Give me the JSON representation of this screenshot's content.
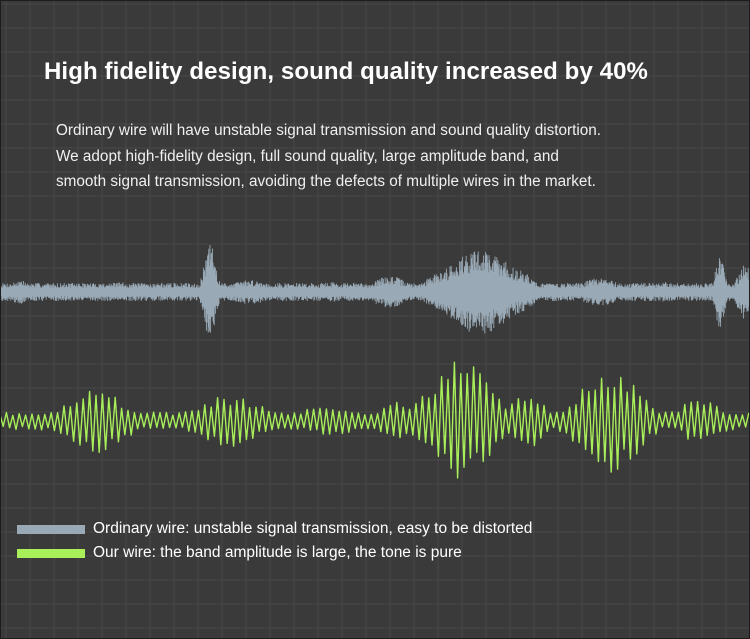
{
  "title": "High fidelity design, sound quality increased by 40%",
  "description": {
    "line1": "Ordinary wire will have unstable signal transmission and sound quality distortion.",
    "line2": "We adopt high-fidelity design, full sound quality, large amplitude band, and",
    "line3": "smooth signal transmission, avoiding the defects of multiple wires in the market."
  },
  "legend": {
    "ordinary": {
      "label": "Ordinary wire: unstable signal transmission, easy to be distorted",
      "color": "#99a9b6"
    },
    "ours": {
      "label": "Our wire: the band amplitude is large, the tone is pure",
      "color": "#a8ef5a"
    }
  },
  "colors": {
    "background": "#3a3a3a",
    "grid": "#555555",
    "ordinary_wave": "#99a9b6",
    "our_wave": "#a8ef5a"
  }
}
